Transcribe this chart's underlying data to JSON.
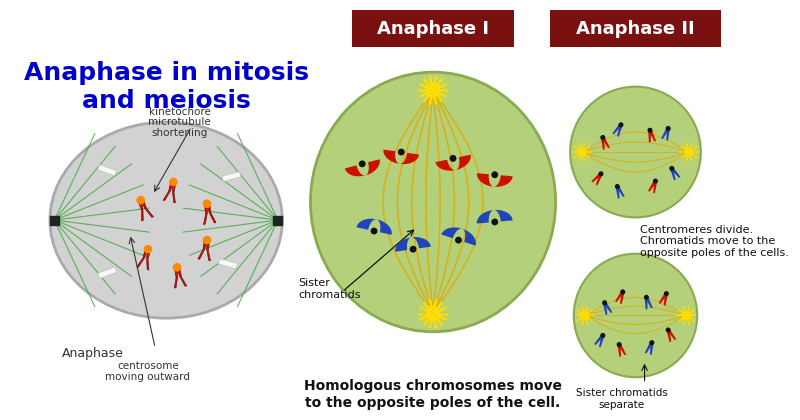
{
  "title": "Anaphase in mitosis\nand meiosis",
  "title_color": "#0000CC",
  "bg_color": "#FFFFFF",
  "anaphase_label": "Anaphase",
  "kineto_label": "kinetochore\nmicrotubule\nshortening",
  "centro_label": "centrosome\nmoving outward",
  "anaphase1_title": "Anaphase I",
  "anaphase2_title": "Anaphase II",
  "header_bg": "#7B1010",
  "header_text": "#FFFFFF",
  "label1_text": "Homologous chromosomes move\nto the opposite poles of the cell.",
  "label2_text": "Centromeres divide.\nChromatids move to the\nopposite poles of the cells.",
  "sister_label": "Sister\nchromatids",
  "sister2_label": "Sister chromatids\nseparate"
}
